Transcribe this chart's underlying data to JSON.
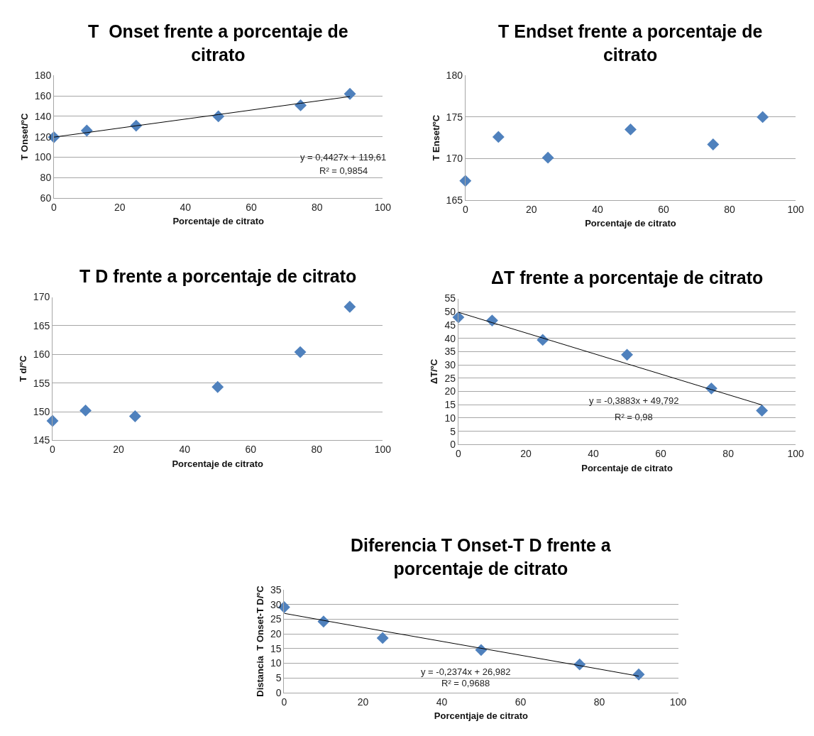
{
  "chart_data": [
    {
      "type": "scatter",
      "title": "T  Onset frente a porcentaje de citrato",
      "xlabel": "Porcentaje de citrato",
      "ylabel": "T Onset/ºC",
      "x": [
        0,
        10,
        25,
        50,
        75,
        90
      ],
      "xlim": [
        0,
        100
      ],
      "xticks": [
        0,
        20,
        40,
        60,
        80,
        100
      ],
      "ylim": [
        60,
        180
      ],
      "yticks": [
        60,
        80,
        100,
        120,
        140,
        160,
        180
      ],
      "grid": "y",
      "marker": "diamond",
      "series": [
        {
          "color": "#4f81bd",
          "values": [
            119.5,
            126,
            130.8,
            140,
            150.8,
            162
          ]
        },
        {
          "type": "line",
          "color": "#000000",
          "values": [
            119.6,
            124.0,
            130.7,
            141.7,
            152.8,
            159.4
          ],
          "marker": "none"
        }
      ],
      "annotations": [
        "y = 0,4427x + 119,61",
        "R² = 0,9854"
      ]
    },
    {
      "type": "scatter",
      "title": "T Endset frente a porcentaje de citrato",
      "xlabel": "Porcentaje de citrato",
      "ylabel": "T Enset/ºC",
      "x": [
        0,
        10,
        25,
        50,
        75,
        90
      ],
      "xlim": [
        0,
        100
      ],
      "xticks": [
        0,
        20,
        40,
        60,
        80,
        100
      ],
      "ylim": [
        165,
        180
      ],
      "yticks": [
        165,
        170,
        175,
        180
      ],
      "grid": "y",
      "marker": "diamond",
      "series": [
        {
          "color": "#4f81bd",
          "values": [
            167.3,
            172.6,
            170.1,
            173.5,
            171.7,
            175
          ]
        }
      ]
    },
    {
      "type": "scatter",
      "title": "T D frente a porcentaje de citrato",
      "xlabel": "Porcentaje de citrato",
      "ylabel": "T d/ºC",
      "x": [
        0,
        10,
        25,
        50,
        75,
        90
      ],
      "xlim": [
        0,
        100
      ],
      "xticks": [
        0,
        20,
        40,
        60,
        80,
        100
      ],
      "ylim": [
        145,
        170
      ],
      "yticks": [
        145,
        150,
        155,
        160,
        165,
        170
      ],
      "grid": "y",
      "marker": "diamond",
      "series": [
        {
          "color": "#4f81bd",
          "values": [
            148.4,
            150.2,
            149.2,
            154.3,
            160.4,
            168.3
          ]
        }
      ]
    },
    {
      "type": "scatter",
      "title": "ΔT frente a porcentaje de citrato",
      "xlabel": "Porcentaje de citrato",
      "ylabel": "ΔT/ºC",
      "x": [
        0,
        10,
        25,
        50,
        75,
        90
      ],
      "xlim": [
        0,
        100
      ],
      "xticks": [
        0,
        20,
        40,
        60,
        80,
        100
      ],
      "ylim": [
        0,
        55
      ],
      "yticks": [
        0,
        5,
        10,
        15,
        20,
        25,
        30,
        35,
        40,
        45,
        50,
        55
      ],
      "grid": "y",
      "marker": "diamond",
      "series": [
        {
          "color": "#4f81bd",
          "values": [
            47.9,
            46.7,
            39.4,
            33.8,
            21.1,
            12.8
          ]
        },
        {
          "type": "line",
          "color": "#000000",
          "values": [
            49.8,
            45.9,
            40.1,
            30.4,
            20.7,
            14.9
          ],
          "marker": "none"
        }
      ],
      "annotations": [
        "y = -0,3883x + 49,792",
        "R² = 0,98"
      ]
    },
    {
      "type": "scatter",
      "title": "Diferencia T Onset-T D frente a porcentaje de citrato",
      "xlabel": "Porcentjaje de citrato",
      "ylabel": "Distancia  T Onset-T D/ºC",
      "x": [
        0,
        10,
        25,
        50,
        75,
        90
      ],
      "xlim": [
        0,
        100
      ],
      "xticks": [
        0,
        20,
        40,
        60,
        80,
        100
      ],
      "ylim": [
        0,
        35
      ],
      "yticks": [
        0,
        5,
        10,
        15,
        20,
        25,
        30,
        35
      ],
      "grid": "y",
      "marker": "diamond",
      "series": [
        {
          "color": "#4f81bd",
          "values": [
            29.1,
            24.2,
            18.6,
            14.5,
            9.6,
            6.2
          ]
        },
        {
          "type": "line",
          "color": "#000000",
          "values": [
            27.0,
            24.6,
            21.0,
            15.1,
            9.2,
            5.6
          ],
          "marker": "none"
        }
      ],
      "annotations": [
        "y = -0,2374x + 26,982",
        "R² = 0,9688"
      ]
    }
  ]
}
